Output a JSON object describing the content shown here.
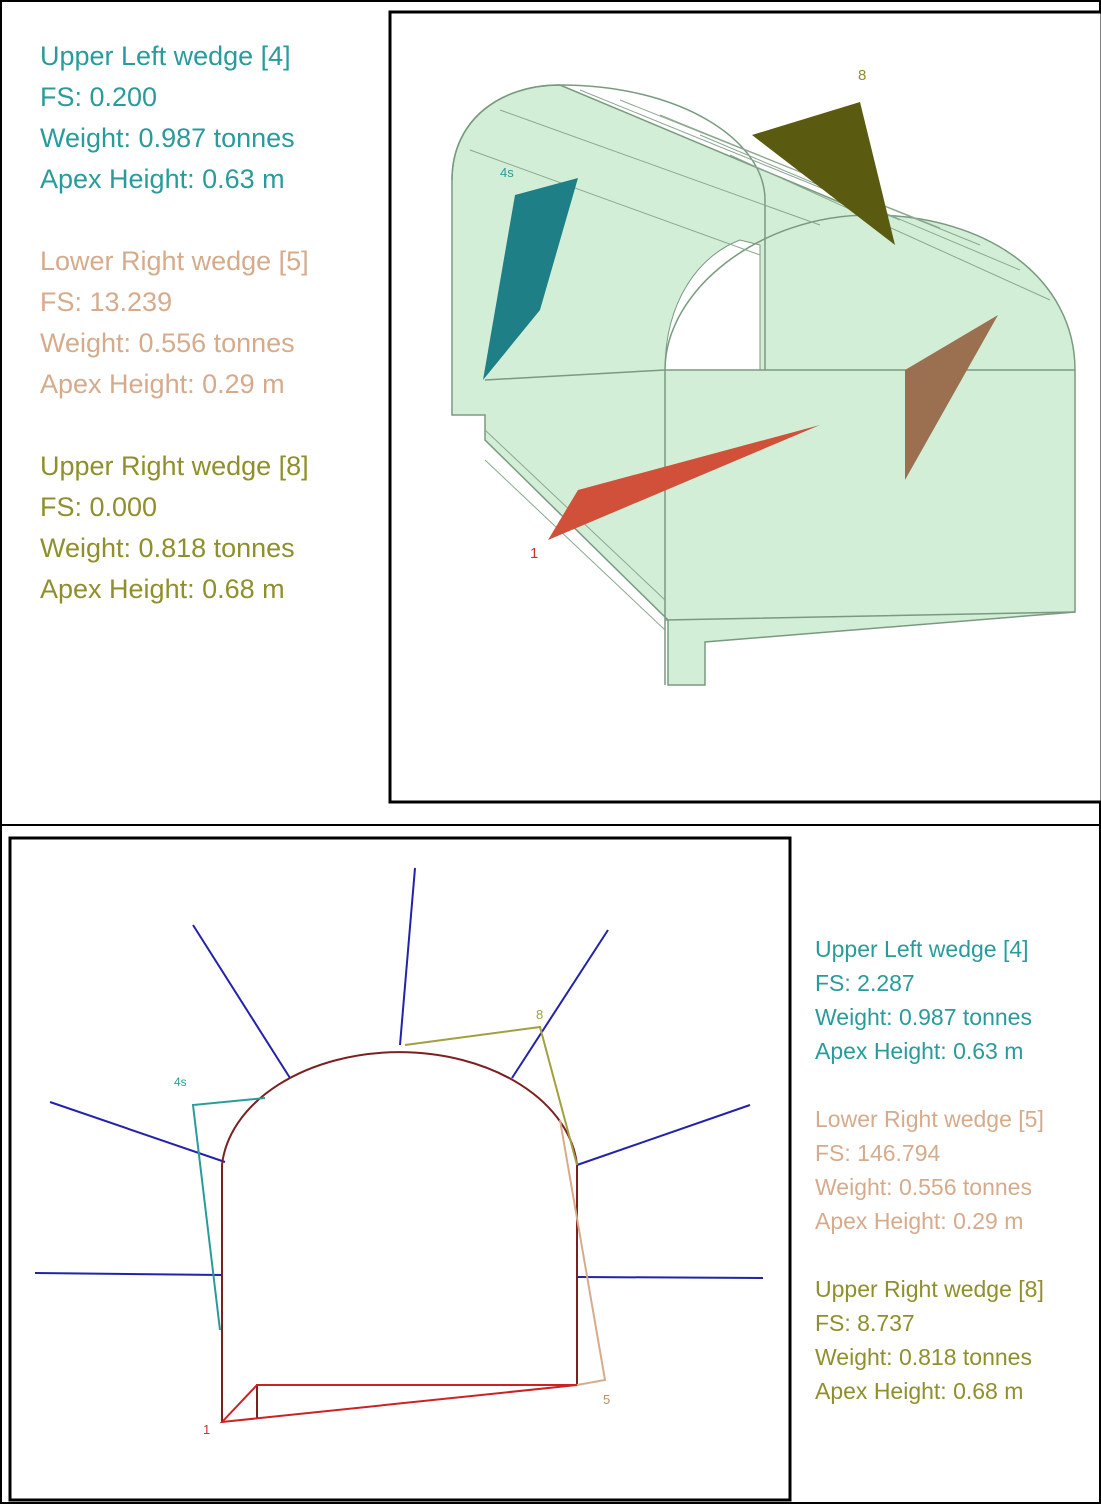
{
  "top_panel": {
    "wedges": [
      {
        "title": "Upper Left wedge [4]",
        "fs": "FS: 0.200",
        "weight": "Weight: 0.987 tonnes",
        "apex_height": "Apex Height: 0.63 m"
      },
      {
        "title": "Lower Right wedge [5]",
        "fs": "FS: 13.239",
        "weight": "Weight: 0.556 tonnes",
        "apex_height": "Apex Height: 0.29 m"
      },
      {
        "title": "Upper Right wedge [8]",
        "fs": "FS: 0.000",
        "weight": "Weight: 0.818 tonnes",
        "apex_height": "Apex Height: 0.68 m"
      }
    ],
    "labels": [
      "4s",
      "8",
      "1"
    ]
  },
  "bottom_panel": {
    "wedges": [
      {
        "title": "Upper Left wedge [4]",
        "fs": "FS: 2.287",
        "weight": "Weight: 0.987 tonnes",
        "apex_height": "Apex Height: 0.63 m"
      },
      {
        "title": "Lower Right wedge [5]",
        "fs": "FS: 146.794",
        "weight": "Weight: 0.556 tonnes",
        "apex_height": "Apex Height: 0.29 m"
      },
      {
        "title": "Upper Right wedge [8]",
        "fs": "FS: 8.737",
        "weight": "Weight: 0.818 tonnes",
        "apex_height": "Apex Height: 0.68 m"
      }
    ],
    "labels": [
      "4s",
      "8",
      "1",
      "5"
    ]
  }
}
